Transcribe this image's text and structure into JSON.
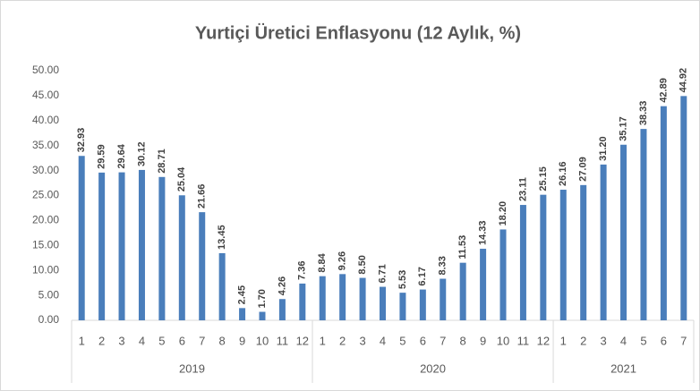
{
  "chart_data": {
    "type": "bar",
    "title": "Yurtiçi Üretici Enflasyonu (12 Aylık, %)",
    "color": "#4a7ebb",
    "grid": false,
    "ylim": [
      0,
      50
    ],
    "yticks": [
      {
        "value": 0,
        "label": "0.00"
      },
      {
        "value": 5,
        "label": "5.00"
      },
      {
        "value": 10,
        "label": "10.00"
      },
      {
        "value": 15,
        "label": "15.00"
      },
      {
        "value": 20,
        "label": "20.00"
      },
      {
        "value": 25,
        "label": "25.00"
      },
      {
        "value": 30,
        "label": "30.00"
      },
      {
        "value": 35,
        "label": "35.00"
      },
      {
        "value": 40,
        "label": "40.00"
      },
      {
        "value": 45,
        "label": "45.00"
      },
      {
        "value": 50,
        "label": "50.00"
      }
    ],
    "groups": [
      {
        "name": "2019",
        "categories": [
          "1",
          "2",
          "3",
          "4",
          "5",
          "6",
          "7",
          "8",
          "9",
          "10",
          "11",
          "12"
        ],
        "values": [
          32.93,
          29.59,
          29.64,
          30.12,
          28.71,
          25.04,
          21.66,
          13.45,
          2.45,
          1.7,
          4.26,
          7.36
        ],
        "value_labels": [
          "32.93",
          "29.59",
          "29.64",
          "30.12",
          "28.71",
          "25.04",
          "21.66",
          "13.45",
          "2.45",
          "1.70",
          "4.26",
          "7.36"
        ]
      },
      {
        "name": "2020",
        "categories": [
          "1",
          "2",
          "3",
          "4",
          "5",
          "6",
          "7",
          "8",
          "9",
          "10",
          "11",
          "12"
        ],
        "values": [
          8.84,
          9.26,
          8.5,
          6.71,
          5.53,
          6.17,
          8.33,
          11.53,
          14.33,
          18.2,
          23.11,
          25.15
        ],
        "value_labels": [
          "8.84",
          "9.26",
          "8.50",
          "6.71",
          "5.53",
          "6.17",
          "8.33",
          "11.53",
          "14.33",
          "18.20",
          "23.11",
          "25.15"
        ]
      },
      {
        "name": "2021",
        "categories": [
          "1",
          "2",
          "3",
          "4",
          "5",
          "6",
          "7"
        ],
        "values": [
          26.16,
          27.09,
          31.2,
          35.17,
          38.33,
          42.89,
          44.92
        ],
        "value_labels": [
          "26.16",
          "27.09",
          "31.20",
          "35.17",
          "38.33",
          "42.89",
          "44.92"
        ]
      }
    ]
  }
}
